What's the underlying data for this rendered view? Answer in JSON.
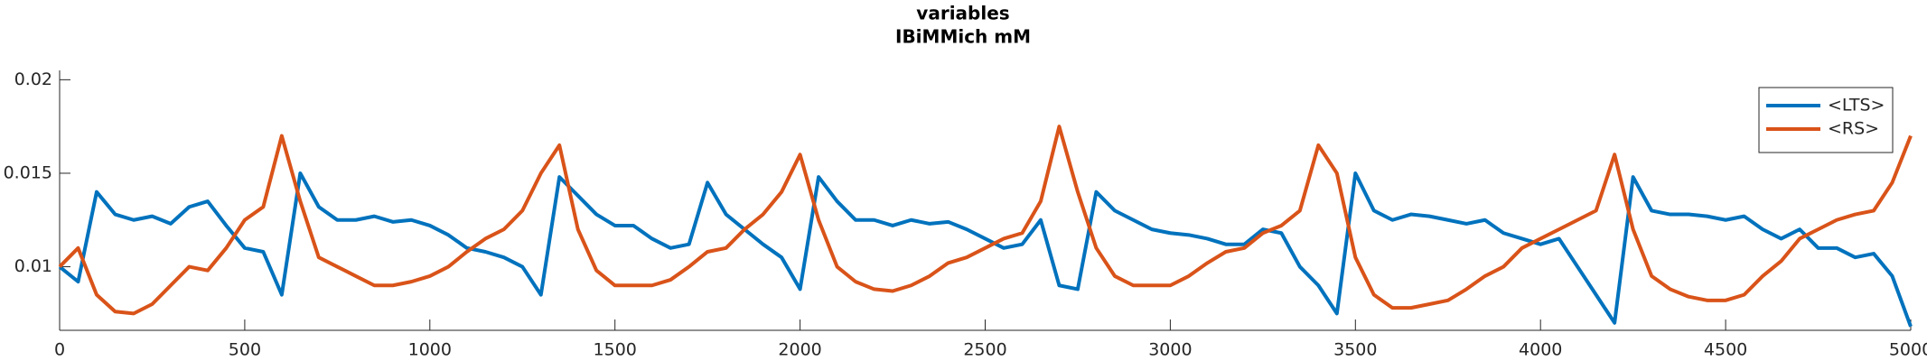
{
  "chart_data": {
    "type": "line",
    "title": "variables",
    "subtitle": "IBiMMich mM",
    "x": [
      0,
      50,
      100,
      150,
      200,
      250,
      300,
      350,
      400,
      450,
      500,
      550,
      600,
      650,
      700,
      750,
      800,
      850,
      900,
      950,
      1000,
      1050,
      1100,
      1150,
      1200,
      1250,
      1300,
      1350,
      1400,
      1450,
      1500,
      1550,
      1600,
      1650,
      1700,
      1750,
      1800,
      1850,
      1900,
      1950,
      2000,
      2050,
      2100,
      2150,
      2200,
      2250,
      2300,
      2350,
      2400,
      2450,
      2500,
      2550,
      2600,
      2650,
      2700,
      2750,
      2800,
      2850,
      2900,
      2950,
      3000,
      3050,
      3100,
      3150,
      3200,
      3250,
      3300,
      3350,
      3400,
      3450,
      3500,
      3550,
      3600,
      3650,
      3700,
      3750,
      3800,
      3850,
      3900,
      3950,
      4000,
      4050,
      4100,
      4150,
      4200,
      4250,
      4300,
      4350,
      4400,
      4450,
      4500,
      4550,
      4600,
      4650,
      4700,
      4750,
      4800,
      4850,
      4900,
      4950,
      5000
    ],
    "series": [
      {
        "name": "<LTS>",
        "color": "#0072bd",
        "values": [
          0.01,
          0.0092,
          0.014,
          0.0128,
          0.0125,
          0.0127,
          0.0123,
          0.0132,
          0.0135,
          0.0122,
          0.011,
          0.0108,
          0.0085,
          0.015,
          0.0132,
          0.0125,
          0.0125,
          0.0127,
          0.0124,
          0.0125,
          0.0122,
          0.0117,
          0.011,
          0.0108,
          0.0105,
          0.01,
          0.0085,
          0.0148,
          0.0138,
          0.0128,
          0.0122,
          0.0122,
          0.0115,
          0.011,
          0.0112,
          0.0145,
          0.0128,
          0.012,
          0.0112,
          0.0105,
          0.0088,
          0.0148,
          0.0135,
          0.0125,
          0.0125,
          0.0122,
          0.0125,
          0.0123,
          0.0124,
          0.012,
          0.0115,
          0.011,
          0.0112,
          0.0125,
          0.009,
          0.0088,
          0.014,
          0.013,
          0.0125,
          0.012,
          0.0118,
          0.0117,
          0.0115,
          0.0112,
          0.0112,
          0.012,
          0.0118,
          0.01,
          0.009,
          0.0075,
          0.015,
          0.013,
          0.0125,
          0.0128,
          0.0127,
          0.0125,
          0.0123,
          0.0125,
          0.0118,
          0.0115,
          0.0112,
          0.0115,
          0.01,
          0.0085,
          0.007,
          0.0148,
          0.013,
          0.0128,
          0.0128,
          0.0127,
          0.0125,
          0.0127,
          0.012,
          0.0115,
          0.012,
          0.011,
          0.011,
          0.0105,
          0.0107,
          0.0095,
          0.0068
        ]
      },
      {
        "name": "<RS>",
        "color": "#d95319",
        "values": [
          0.01,
          0.011,
          0.0085,
          0.0076,
          0.0075,
          0.008,
          0.009,
          0.01,
          0.0098,
          0.011,
          0.0125,
          0.0132,
          0.017,
          0.0135,
          0.0105,
          0.01,
          0.0095,
          0.009,
          0.009,
          0.0092,
          0.0095,
          0.01,
          0.0108,
          0.0115,
          0.012,
          0.013,
          0.015,
          0.0165,
          0.012,
          0.0098,
          0.009,
          0.009,
          0.009,
          0.0093,
          0.01,
          0.0108,
          0.011,
          0.012,
          0.0128,
          0.014,
          0.016,
          0.0125,
          0.01,
          0.0092,
          0.0088,
          0.0087,
          0.009,
          0.0095,
          0.0102,
          0.0105,
          0.011,
          0.0115,
          0.0118,
          0.0135,
          0.0175,
          0.014,
          0.011,
          0.0095,
          0.009,
          0.009,
          0.009,
          0.0095,
          0.0102,
          0.0108,
          0.011,
          0.0118,
          0.0122,
          0.013,
          0.0165,
          0.015,
          0.0105,
          0.0085,
          0.0078,
          0.0078,
          0.008,
          0.0082,
          0.0088,
          0.0095,
          0.01,
          0.011,
          0.0115,
          0.012,
          0.0125,
          0.013,
          0.016,
          0.012,
          0.0095,
          0.0088,
          0.0084,
          0.0082,
          0.0082,
          0.0085,
          0.0095,
          0.0103,
          0.0115,
          0.012,
          0.0125,
          0.0128,
          0.013,
          0.0145,
          0.017
        ]
      }
    ],
    "xlim": [
      0,
      5000
    ],
    "xticks": [
      0,
      500,
      1000,
      1500,
      2000,
      2500,
      3000,
      3500,
      4000,
      4500,
      5000
    ],
    "ylim": [
      0.0066,
      0.0205
    ],
    "yticks": [
      0.01,
      0.015,
      0.02
    ],
    "legend": "northeast"
  }
}
